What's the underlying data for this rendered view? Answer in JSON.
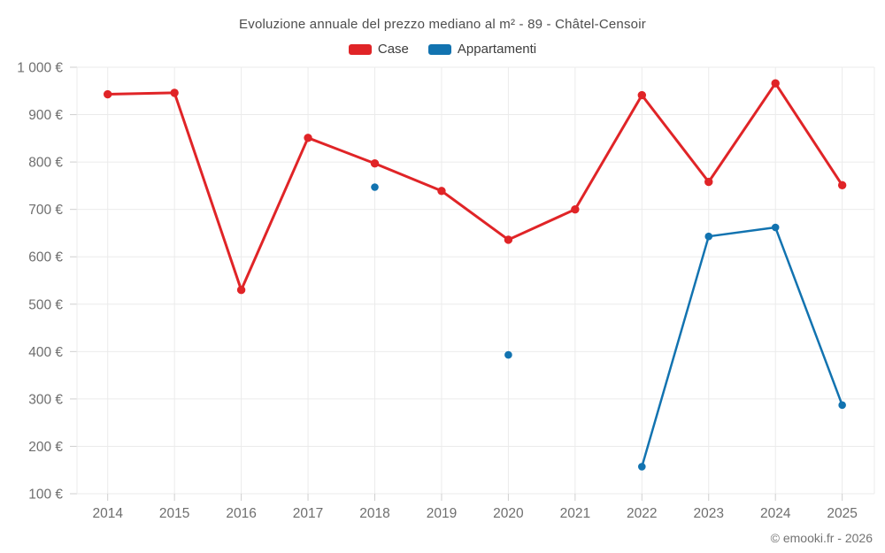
{
  "header": {
    "title": "Evoluzione annuale del prezzo mediano al m² - 89 - Châtel-Censoir"
  },
  "chart_data": {
    "type": "line",
    "title": "Evoluzione annuale del prezzo mediano al m² - 89 - Châtel-Censoir",
    "categories": [
      "2014",
      "2015",
      "2016",
      "2017",
      "2018",
      "2019",
      "2020",
      "2021",
      "2022",
      "2023",
      "2024",
      "2025"
    ],
    "series": [
      {
        "name": "Case",
        "color": "#e02427",
        "values": [
          943,
          946,
          530,
          851,
          797,
          739,
          636,
          700,
          941,
          758,
          966,
          751
        ]
      },
      {
        "name": "Appartamenti",
        "color": "#1273b0",
        "values": [
          null,
          null,
          null,
          null,
          747,
          null,
          393,
          null,
          157,
          643,
          662,
          287
        ]
      }
    ],
    "ylim": [
      100,
      1000
    ],
    "yticks": [
      {
        "value": 1000,
        "label": "1 000 €"
      },
      {
        "value": 900,
        "label": "900 €"
      },
      {
        "value": 800,
        "label": "800 €"
      },
      {
        "value": 700,
        "label": "700 €"
      },
      {
        "value": 600,
        "label": "600 €"
      },
      {
        "value": 500,
        "label": "500 €"
      },
      {
        "value": 400,
        "label": "400 €"
      },
      {
        "value": 300,
        "label": "300 €"
      },
      {
        "value": 200,
        "label": "200 €"
      },
      {
        "value": 100,
        "label": "100 €"
      }
    ],
    "legend_position": "top",
    "grid": true,
    "gap_bridging": false
  },
  "footer": {
    "copyright": "© emooki.fr - 2026"
  }
}
